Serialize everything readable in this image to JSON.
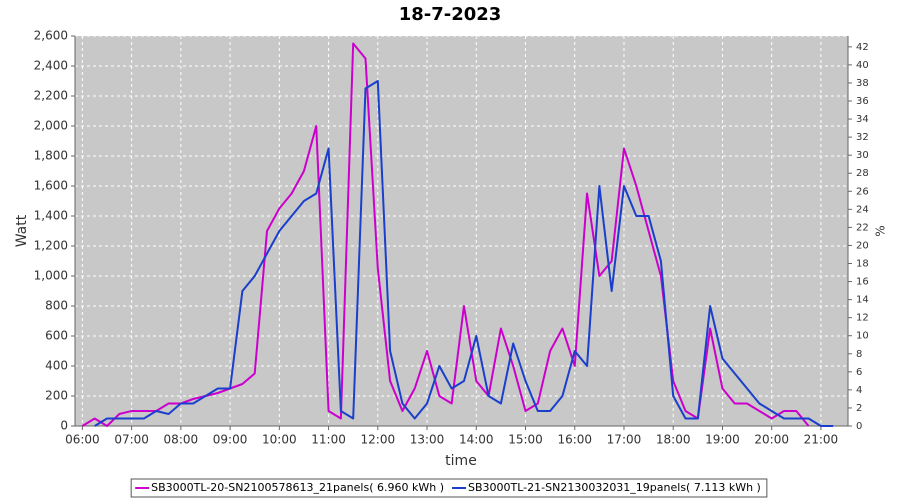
{
  "chart_data": {
    "type": "line",
    "title": "18-7-2023",
    "x_label": "time",
    "y_label": "Watt",
    "y2_label": "%",
    "x": [
      6,
      6.25,
      6.5,
      6.75,
      7,
      7.25,
      7.5,
      7.75,
      8,
      8.25,
      8.5,
      8.75,
      9,
      9.25,
      9.5,
      9.75,
      10,
      10.25,
      10.5,
      10.75,
      11,
      11.25,
      11.5,
      11.75,
      12,
      12.25,
      12.5,
      12.75,
      13,
      13.25,
      13.5,
      13.75,
      14,
      14.25,
      14.5,
      14.75,
      15,
      15.25,
      15.5,
      15.75,
      16,
      16.25,
      16.5,
      16.75,
      17,
      17.25,
      17.5,
      17.75,
      18,
      18.25,
      18.5,
      18.75,
      19,
      19.25,
      19.5,
      19.75,
      20,
      20.25,
      20.5,
      20.75,
      21,
      21.25
    ],
    "series": [
      {
        "name": "SB3000TL-20-SN2100578613_21panels( 6.960 kWh )",
        "color": "#cc00cc",
        "values": [
          0,
          50,
          0,
          80,
          100,
          100,
          100,
          150,
          150,
          180,
          200,
          220,
          250,
          280,
          350,
          1300,
          1450,
          1550,
          1700,
          2000,
          100,
          50,
          2550,
          2450,
          1050,
          300,
          100,
          250,
          500,
          200,
          150,
          800,
          300,
          200,
          650,
          400,
          100,
          150,
          500,
          650,
          400,
          1550,
          1000,
          1100,
          1850,
          1600,
          1300,
          1000,
          300,
          100,
          50,
          650,
          250,
          150,
          150,
          100,
          50,
          100,
          100,
          0,
          null,
          null
        ]
      },
      {
        "name": "SB3000TL-21-SN2130032031_19panels( 7.113 kWh )",
        "color": "#1a3fcc",
        "values": [
          null,
          0,
          50,
          50,
          50,
          50,
          100,
          80,
          150,
          150,
          200,
          250,
          250,
          900,
          1000,
          1150,
          1300,
          1400,
          1500,
          1550,
          1850,
          100,
          50,
          2250,
          2300,
          500,
          150,
          50,
          150,
          400,
          250,
          300,
          600,
          200,
          150,
          550,
          300,
          100,
          100,
          200,
          500,
          400,
          1600,
          900,
          1600,
          1400,
          1400,
          1100,
          200,
          50,
          50,
          800,
          450,
          350,
          250,
          150,
          100,
          50,
          50,
          50,
          0,
          0
        ]
      }
    ],
    "xlim": [
      5.85,
      21.55
    ],
    "xticks": [
      {
        "value": 6,
        "label": "06:00"
      },
      {
        "value": 7,
        "label": "07:00"
      },
      {
        "value": 8,
        "label": "08:00"
      },
      {
        "value": 9,
        "label": "09:00"
      },
      {
        "value": 10,
        "label": "10:00"
      },
      {
        "value": 11,
        "label": "11:00"
      },
      {
        "value": 12,
        "label": "12:00"
      },
      {
        "value": 13,
        "label": "13:00"
      },
      {
        "value": 14,
        "label": "14:00"
      },
      {
        "value": 15,
        "label": "15:00"
      },
      {
        "value": 16,
        "label": "16:00"
      },
      {
        "value": 17,
        "label": "17:00"
      },
      {
        "value": 18,
        "label": "18:00"
      },
      {
        "value": 19,
        "label": "19:00"
      },
      {
        "value": 20,
        "label": "20:00"
      },
      {
        "value": 21,
        "label": "21:00"
      }
    ],
    "ylim": [
      0,
      2600
    ],
    "yticks": [
      0,
      200,
      400,
      600,
      800,
      {
        "value": 1000,
        "label": "1,000"
      },
      {
        "value": 1200,
        "label": "1,200"
      },
      {
        "value": 1400,
        "label": "1,400"
      },
      {
        "value": 1600,
        "label": "1,600"
      },
      {
        "value": 1800,
        "label": "1,800"
      },
      {
        "value": 2000,
        "label": "2,000"
      },
      {
        "value": 2200,
        "label": "2,200"
      },
      {
        "value": 2400,
        "label": "2,400"
      },
      {
        "value": 2600,
        "label": "2,600"
      }
    ],
    "y2lim": [
      0,
      43.2
    ],
    "y2ticks": [
      0,
      2,
      4,
      6,
      8,
      10,
      12,
      14,
      16,
      18,
      20,
      22,
      24,
      26,
      28,
      30,
      32,
      34,
      36,
      38,
      40,
      42
    ],
    "grid": true,
    "legend": "bottom",
    "plot_background": "#c8c8c8"
  }
}
